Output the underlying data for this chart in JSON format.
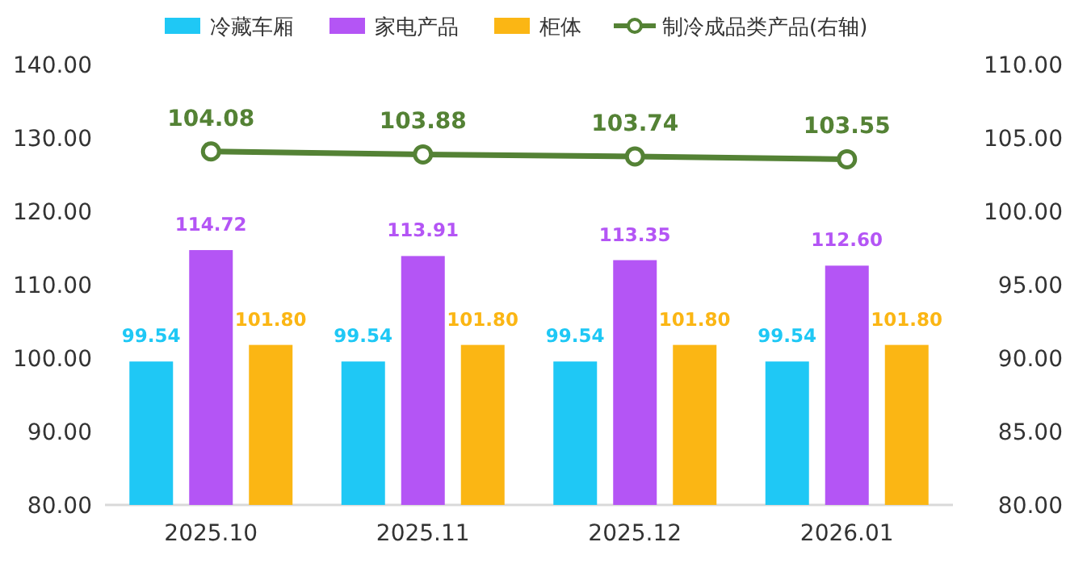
{
  "chart_data": {
    "type": "bar",
    "categories": [
      "2025.10",
      "2025.11",
      "2025.12",
      "2026.01"
    ],
    "series": [
      {
        "name": "冷藏车厢",
        "color": "#1fc8f5",
        "values": [
          99.54,
          99.54,
          99.54,
          99.54
        ],
        "value_labels": [
          "99.54",
          "99.54",
          "99.54",
          "99.54"
        ]
      },
      {
        "name": "家电产品",
        "color": "#b455f5",
        "values": [
          114.72,
          113.91,
          113.35,
          112.6
        ],
        "value_labels": [
          "114.72",
          "113.91",
          "113.35",
          "112.60"
        ]
      },
      {
        "name": "柜体",
        "color": "#fbb614",
        "values": [
          101.8,
          101.8,
          101.8,
          101.8
        ],
        "value_labels": [
          "101.80",
          "101.80",
          "101.80",
          "101.80"
        ]
      },
      {
        "name": "制冷成品类产品(右轴)",
        "type": "line",
        "axis": "y2",
        "color": "#548235",
        "marker": "circle",
        "values": [
          104.08,
          103.88,
          103.74,
          103.55
        ],
        "value_labels": [
          "104.08",
          "103.88",
          "103.74",
          "103.55"
        ]
      }
    ],
    "ylim": [
      80,
      140
    ],
    "yticks": [
      {
        "value": 80,
        "label": "80.00"
      },
      {
        "value": 90,
        "label": "90.00"
      },
      {
        "value": 100,
        "label": "100.00"
      },
      {
        "value": 110,
        "label": "110.00"
      },
      {
        "value": 120,
        "label": "120.00"
      },
      {
        "value": 130,
        "label": "130.00"
      },
      {
        "value": 140,
        "label": "140.00"
      }
    ],
    "y2lim": [
      80,
      110
    ],
    "y2ticks": [
      {
        "value": 80,
        "label": "80.00"
      },
      {
        "value": 85,
        "label": "85.00"
      },
      {
        "value": 90,
        "label": "90.00"
      },
      {
        "value": 95,
        "label": "95.00"
      },
      {
        "value": 100,
        "label": "100.00"
      },
      {
        "value": 105,
        "label": "105.00"
      },
      {
        "value": 110,
        "label": "110.00"
      }
    ],
    "legend": "top"
  }
}
